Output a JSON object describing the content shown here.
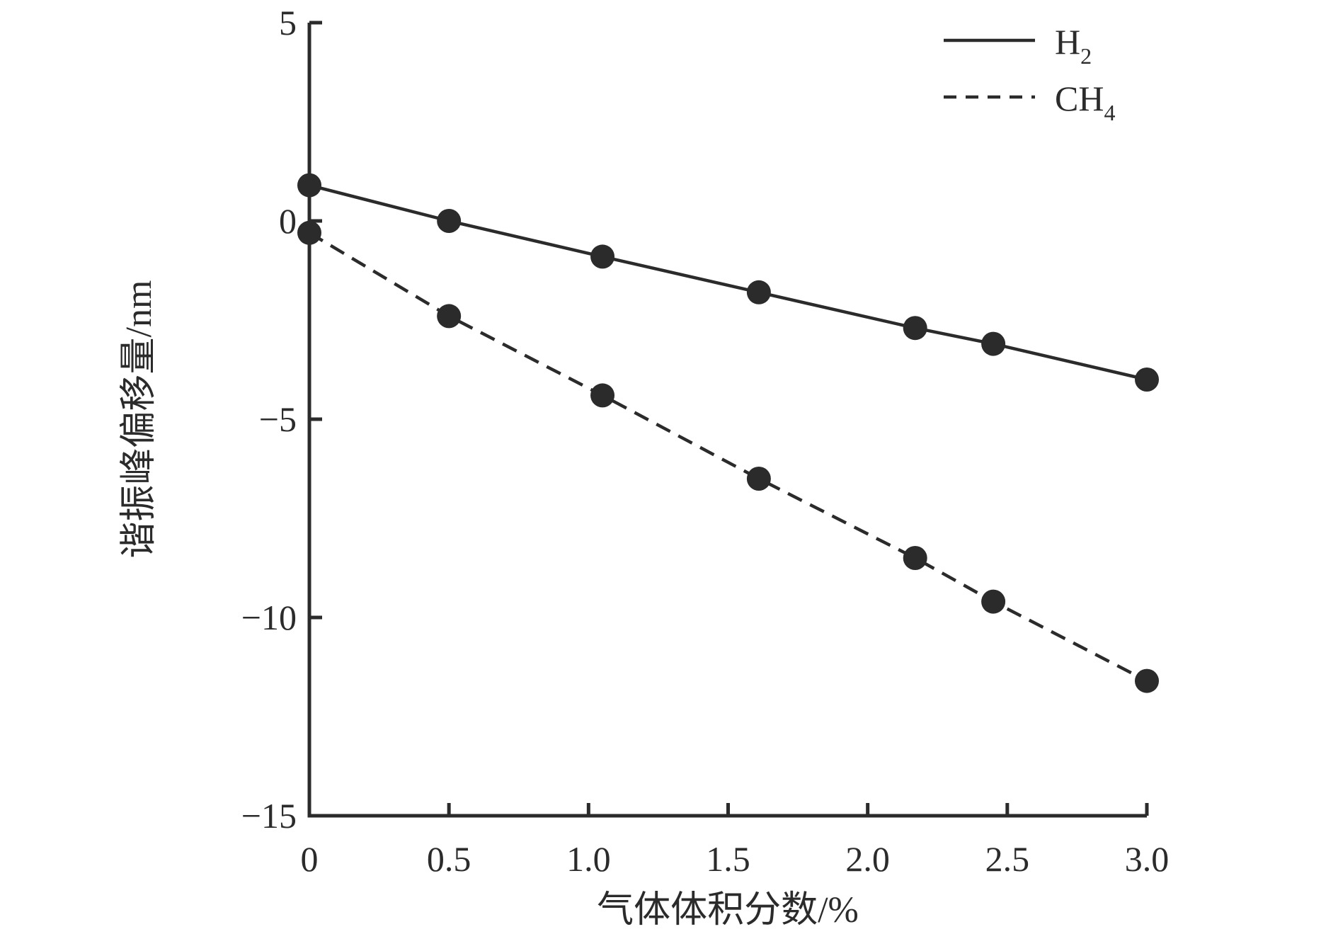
{
  "chart_data": {
    "type": "line",
    "title": "",
    "xlabel": "气体体积分数/%",
    "ylabel": "谐振峰偏移量/nm",
    "xlim": [
      0,
      3.0
    ],
    "ylim": [
      -15,
      5
    ],
    "grid": false,
    "legend_position": "top-right",
    "color": "#2b2b2b",
    "background": "#ffffff",
    "x_ticks": {
      "values": [
        0,
        0.5,
        1.0,
        1.5,
        2.0,
        2.5,
        3.0
      ],
      "labels": [
        "0",
        "0.5",
        "1.0",
        "1.5",
        "2.0",
        "2.5",
        "3.0"
      ]
    },
    "y_ticks": {
      "values": [
        5,
        0,
        -5,
        -10,
        -15
      ],
      "labels": [
        "5",
        "0",
        "−5",
        "−10",
        "−15"
      ]
    },
    "x": [
      0,
      0.5,
      1.05,
      1.61,
      2.17,
      2.45,
      3.0
    ],
    "series": [
      {
        "name": "H2",
        "label": "H",
        "subscript": "2",
        "line_style": "solid",
        "values": [
          0.9,
          0.0,
          -0.9,
          -1.8,
          -2.7,
          -3.1,
          -4.0
        ]
      },
      {
        "name": "CH4",
        "label": "CH",
        "subscript": "4",
        "line_style": "dashed",
        "values": [
          -0.3,
          -2.4,
          -4.4,
          -6.5,
          -8.5,
          -9.6,
          -11.6
        ]
      }
    ]
  }
}
